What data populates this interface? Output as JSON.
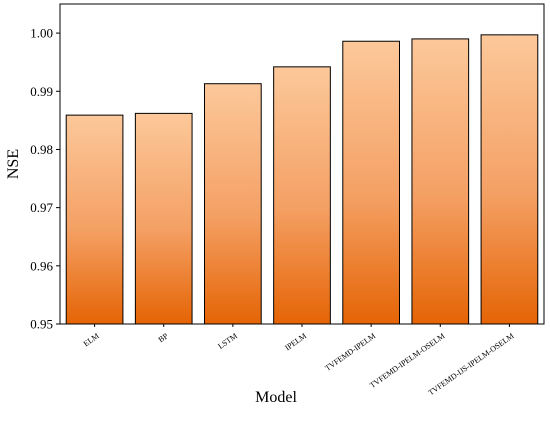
{
  "chart_data": {
    "type": "bar",
    "title": "",
    "xlabel": "Model",
    "ylabel": "NSE",
    "categories": [
      "ELM",
      "BP",
      "LSTM",
      "IPELM",
      "TVFEMD-IPELM",
      "TVFEMD-IPELM-OSELM",
      "TVFEMD-IJS-IPELM-OSELM"
    ],
    "values": [
      0.9859,
      0.9862,
      0.9913,
      0.9942,
      0.9986,
      0.999,
      0.9997
    ],
    "ylim": [
      0.95,
      1.005
    ],
    "yticks": [
      0.95,
      0.96,
      0.97,
      0.98,
      0.99,
      1.0
    ],
    "ytick_labels": [
      "0.95",
      "0.96",
      "0.97",
      "0.98",
      "0.99",
      "1.00"
    ],
    "grid": false,
    "legend": "none",
    "colors": {
      "bar_top": "#fcc89a",
      "bar_bottom": "#e56405",
      "bar_edge": "#000000",
      "axis": "#000000"
    }
  }
}
